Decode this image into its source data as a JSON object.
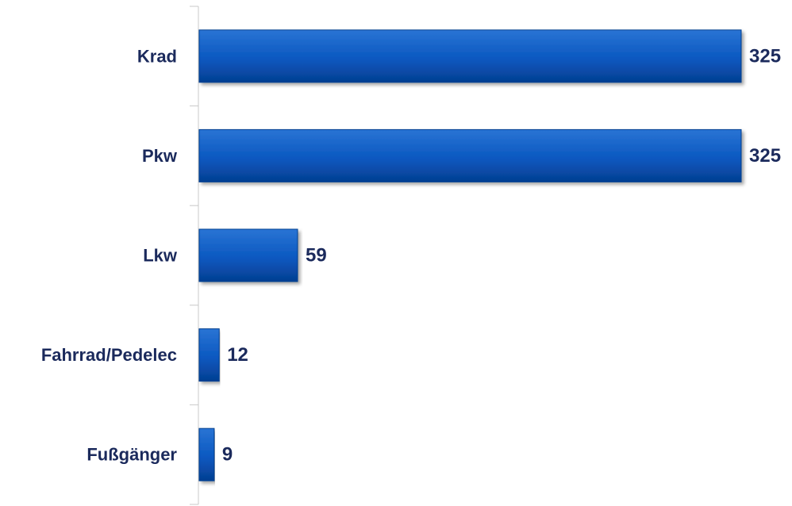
{
  "chart_data": {
    "type": "bar",
    "orientation": "horizontal",
    "categories": [
      "Krad",
      "Pkw",
      "Lkw",
      "Fahrrad/Pedelec",
      "Fußgänger"
    ],
    "values": [
      325,
      325,
      59,
      12,
      9
    ],
    "xlim": [
      0,
      325
    ],
    "grid": false,
    "legend": "none"
  },
  "colors": {
    "bar": "#0a58c0",
    "bar_dark": "#053f91",
    "bar_light": "#2a74d4",
    "text": "#1b2a5c",
    "axis": "#c8c8c8"
  }
}
